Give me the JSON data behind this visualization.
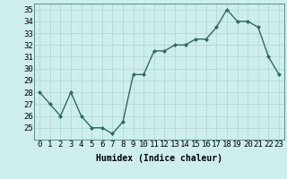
{
  "x": [
    0,
    1,
    2,
    3,
    4,
    5,
    6,
    7,
    8,
    9,
    10,
    11,
    12,
    13,
    14,
    15,
    16,
    17,
    18,
    19,
    20,
    21,
    22,
    23
  ],
  "y": [
    28,
    27,
    26,
    28,
    26,
    25,
    25,
    24.5,
    25.5,
    29.5,
    29.5,
    31.5,
    31.5,
    32,
    32,
    32.5,
    32.5,
    33.5,
    35,
    34,
    34,
    33.5,
    31,
    29.5
  ],
  "line_color": "#2d6b5e",
  "marker": "D",
  "marker_size": 2.0,
  "line_width": 1.0,
  "bg_color": "#ceeeed",
  "grid_color": "#aed4d3",
  "xlabel": "Humidex (Indice chaleur)",
  "xlim": [
    -0.5,
    23.5
  ],
  "ylim": [
    24.0,
    35.5
  ],
  "yticks": [
    25,
    26,
    27,
    28,
    29,
    30,
    31,
    32,
    33,
    34,
    35
  ],
  "xticks": [
    0,
    1,
    2,
    3,
    4,
    5,
    6,
    7,
    8,
    9,
    10,
    11,
    12,
    13,
    14,
    15,
    16,
    17,
    18,
    19,
    20,
    21,
    22,
    23
  ],
  "xlabel_fontsize": 7,
  "tick_fontsize": 6.5
}
